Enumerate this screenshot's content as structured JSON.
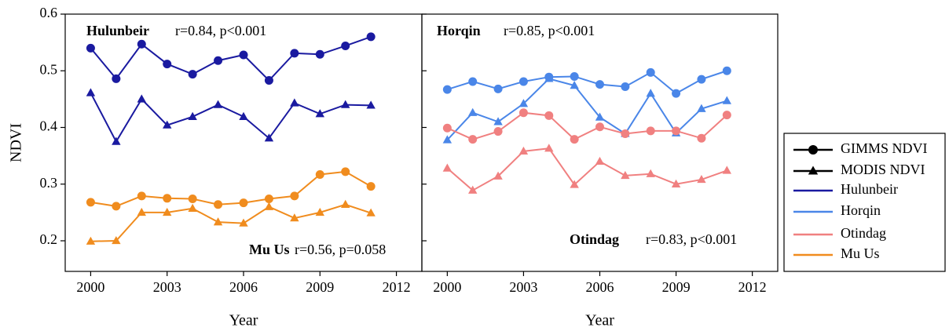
{
  "legend": {
    "markers": [
      {
        "name": "GIMMS NDVI",
        "marker": "circle"
      },
      {
        "name": "MODIS NDVI",
        "marker": "triangle"
      }
    ],
    "regions": [
      {
        "name": "Hulunbeir",
        "color": "#1a1aa0"
      },
      {
        "name": "Horqin",
        "color": "#4a86e8"
      },
      {
        "name": "Otindag",
        "color": "#f08080"
      },
      {
        "name": "Mu Us",
        "color": "#f08c1e"
      }
    ]
  },
  "chart_data": [
    {
      "type": "line",
      "ylabel": "NDVI",
      "xlabel": "Year",
      "show_ytick_labels": true,
      "x": [
        2000,
        2001,
        2002,
        2003,
        2004,
        2005,
        2006,
        2007,
        2008,
        2009,
        2010,
        2011
      ],
      "xlim": [
        1999,
        2013
      ],
      "xticks": [
        2000,
        2003,
        2006,
        2009,
        2012
      ],
      "ylim": [
        0.146,
        0.6
      ],
      "yticks": [
        0.2,
        0.3,
        0.4,
        0.5,
        0.6
      ],
      "annotations": [
        {
          "text": "Hulunbeir",
          "bold": true
        },
        {
          "text": "r=0.84, p<0.001",
          "bold": false
        },
        {
          "text": "Mu Us",
          "bold": true
        },
        {
          "text": "r=0.56, p=0.058",
          "bold": false
        }
      ],
      "series": [
        {
          "region": "Hulunbeir",
          "product": "GIMMS NDVI",
          "color": "#1a1aa0",
          "marker": "circle",
          "values": [
            0.54,
            0.486,
            0.547,
            0.512,
            0.494,
            0.518,
            0.528,
            0.483,
            0.531,
            0.529,
            0.544,
            0.56
          ]
        },
        {
          "region": "Hulunbeir",
          "product": "MODIS NDVI",
          "color": "#1a1aa0",
          "marker": "triangle",
          "values": [
            0.461,
            0.375,
            0.45,
            0.404,
            0.419,
            0.44,
            0.419,
            0.381,
            0.443,
            0.424,
            0.44,
            0.439
          ]
        },
        {
          "region": "Mu Us",
          "product": "GIMMS NDVI",
          "color": "#f08c1e",
          "marker": "circle",
          "values": [
            0.268,
            0.261,
            0.279,
            0.275,
            0.274,
            0.264,
            0.267,
            0.274,
            0.279,
            0.317,
            0.322,
            0.296
          ]
        },
        {
          "region": "Mu Us",
          "product": "MODIS NDVI",
          "color": "#f08c1e",
          "marker": "triangle",
          "values": [
            0.199,
            0.2,
            0.25,
            0.25,
            0.257,
            0.233,
            0.231,
            0.26,
            0.24,
            0.25,
            0.264,
            0.249
          ]
        }
      ]
    },
    {
      "type": "line",
      "xlabel": "Year",
      "show_ytick_labels": false,
      "x": [
        2000,
        2001,
        2002,
        2003,
        2004,
        2005,
        2006,
        2007,
        2008,
        2009,
        2010,
        2011
      ],
      "xlim": [
        1999,
        2013
      ],
      "xticks": [
        2000,
        2003,
        2006,
        2009,
        2012
      ],
      "ylim": [
        0.146,
        0.6
      ],
      "yticks": [
        0.2,
        0.3,
        0.4,
        0.5,
        0.6
      ],
      "annotations": [
        {
          "text": "Horqin",
          "bold": true
        },
        {
          "text": "r=0.85, p<0.001",
          "bold": false
        },
        {
          "text": "Otindag",
          "bold": true
        },
        {
          "text": "r=0.83, p<0.001",
          "bold": false
        }
      ],
      "series": [
        {
          "region": "Horqin",
          "product": "GIMMS NDVI",
          "color": "#4a86e8",
          "marker": "circle",
          "values": [
            0.467,
            0.481,
            0.468,
            0.481,
            0.489,
            0.49,
            0.476,
            0.472,
            0.497,
            0.46,
            0.485,
            0.5
          ]
        },
        {
          "region": "Horqin",
          "product": "MODIS NDVI",
          "color": "#4a86e8",
          "marker": "triangle",
          "values": [
            0.378,
            0.426,
            0.41,
            0.442,
            0.486,
            0.474,
            0.418,
            0.389,
            0.46,
            0.39,
            0.433,
            0.447
          ]
        },
        {
          "region": "Otindag",
          "product": "GIMMS NDVI",
          "color": "#f08080",
          "marker": "circle",
          "values": [
            0.399,
            0.379,
            0.393,
            0.426,
            0.421,
            0.379,
            0.401,
            0.389,
            0.394,
            0.394,
            0.381,
            0.422
          ]
        },
        {
          "region": "Otindag",
          "product": "MODIS NDVI",
          "color": "#f08080",
          "marker": "triangle",
          "values": [
            0.328,
            0.289,
            0.314,
            0.358,
            0.363,
            0.299,
            0.34,
            0.315,
            0.318,
            0.3,
            0.308,
            0.324
          ]
        }
      ]
    }
  ]
}
